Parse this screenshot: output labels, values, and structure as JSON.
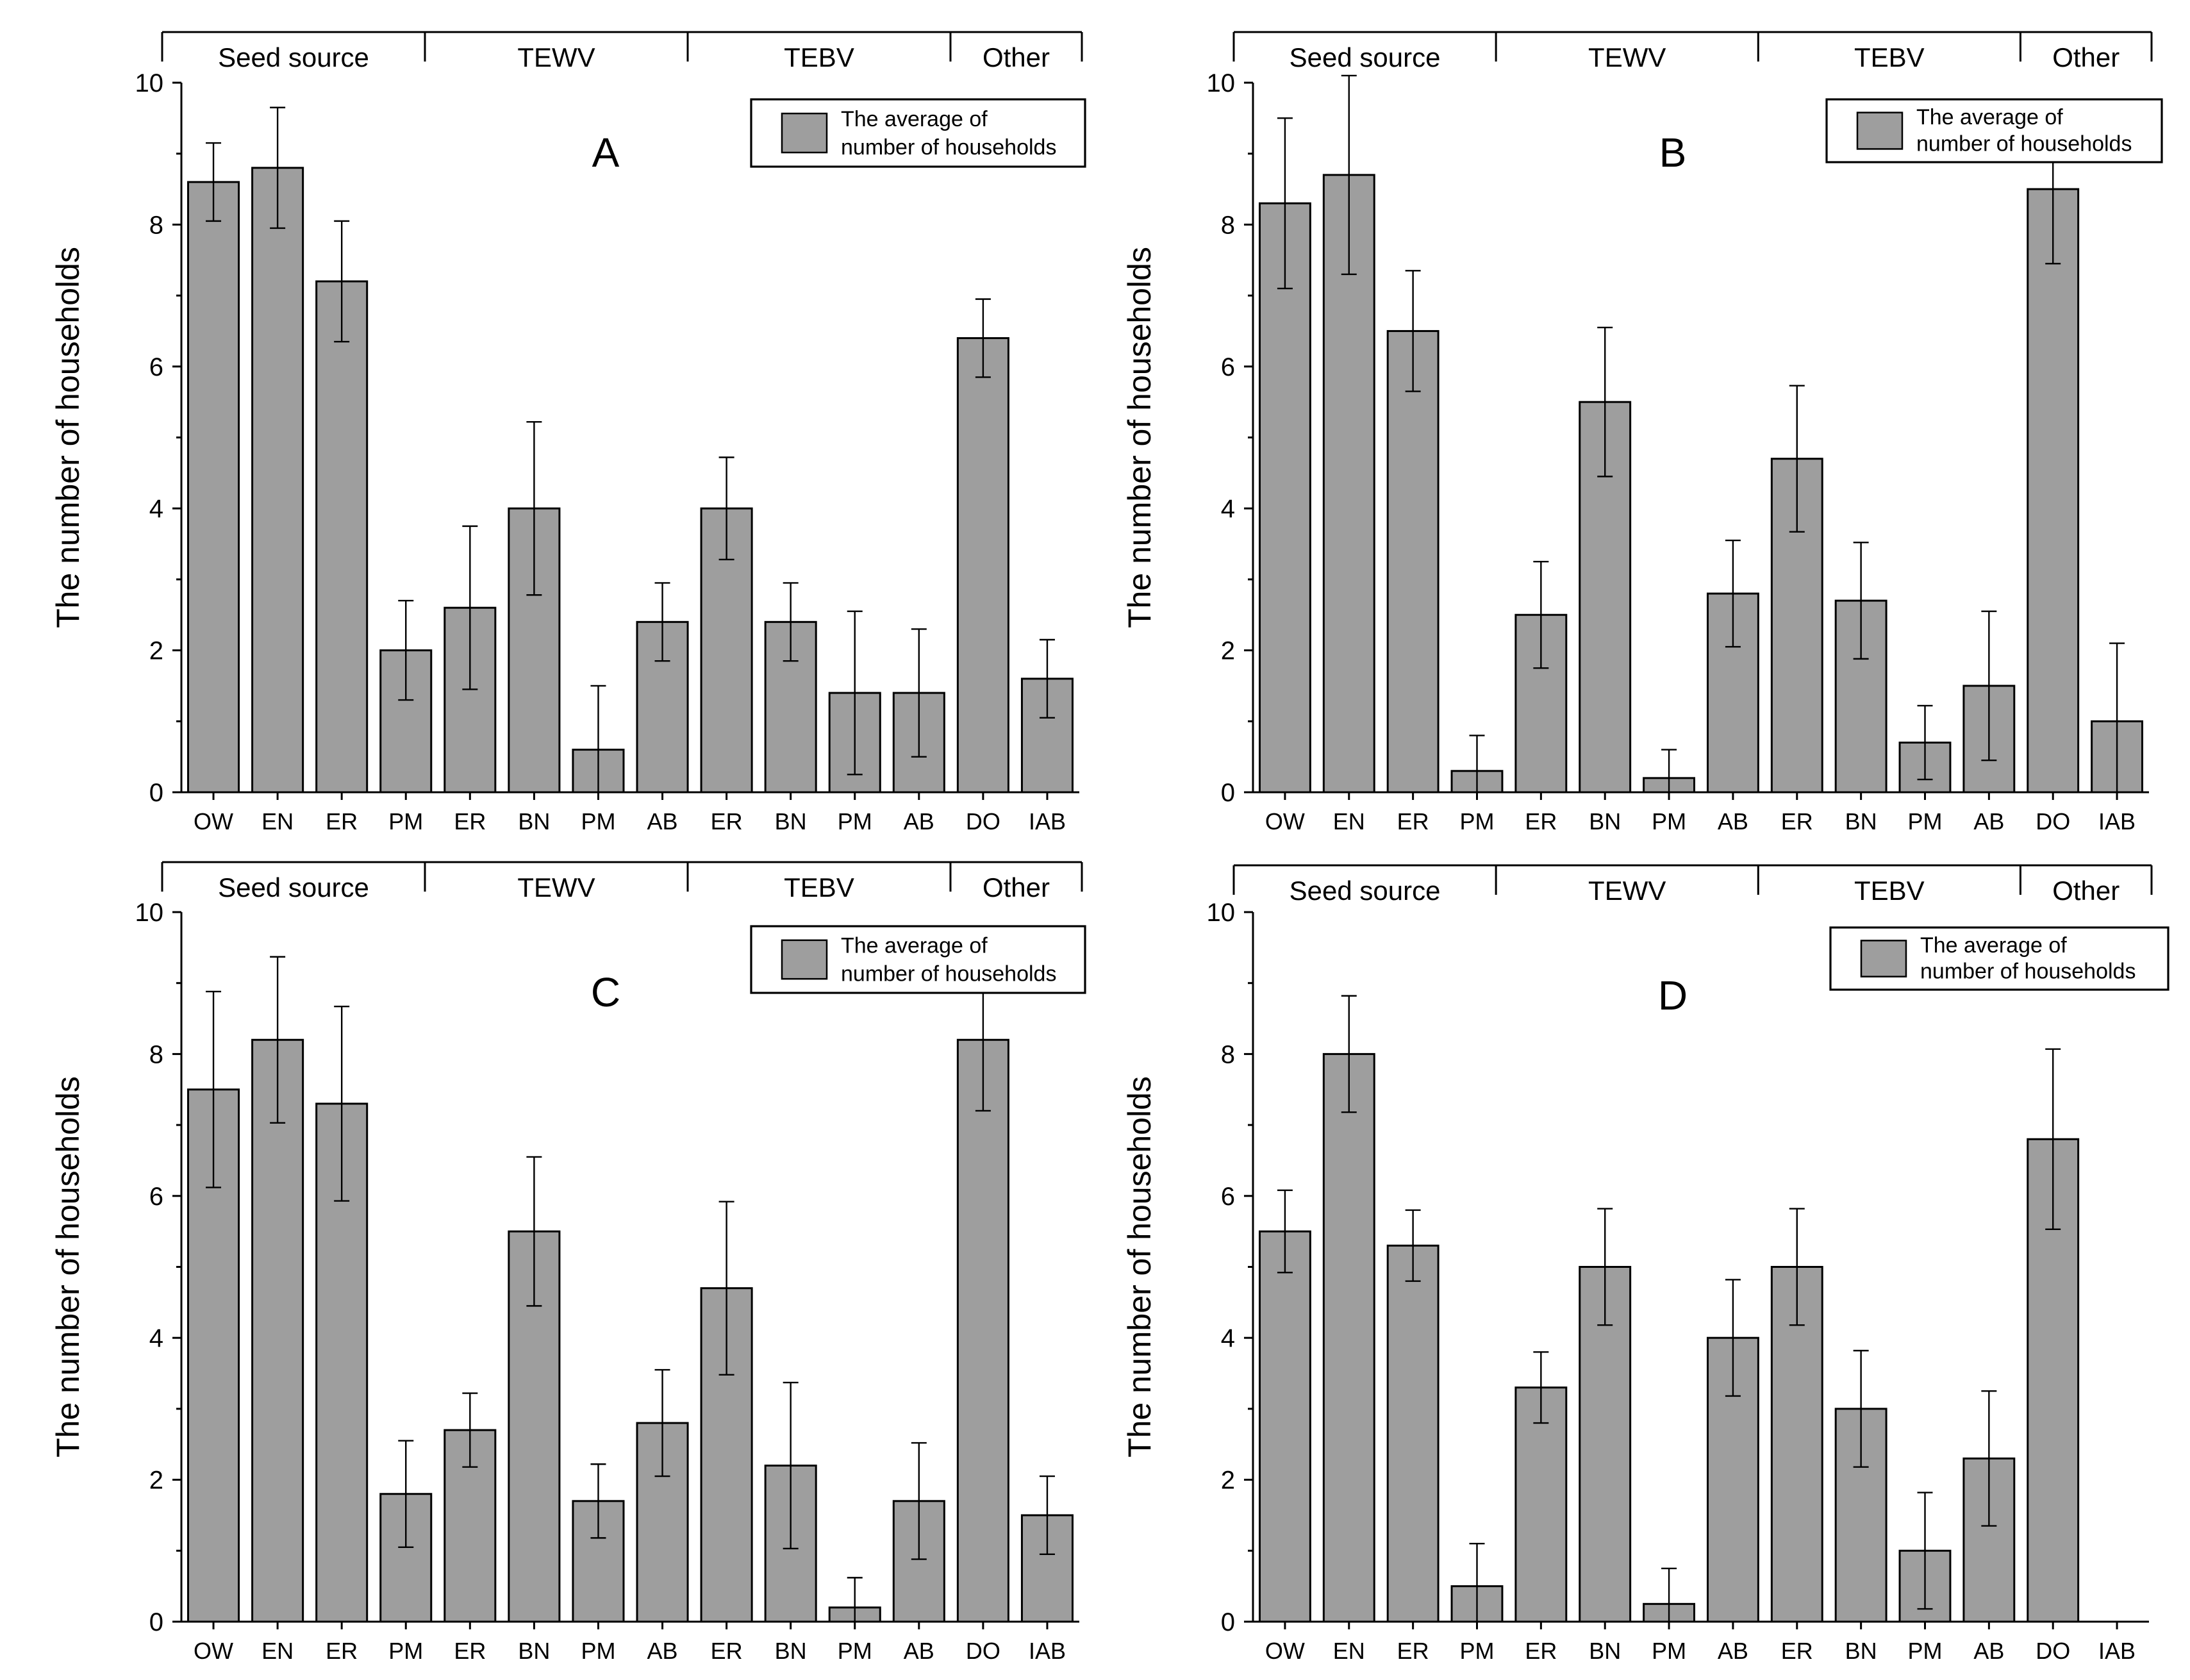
{
  "chart_data": [
    {
      "type": "bar",
      "panel_label": "A",
      "ylabel": "The number of households",
      "ylim": [
        0,
        10
      ],
      "yticks": [
        "0",
        "2",
        "4",
        "6",
        "8",
        "10"
      ],
      "legend": "The average of number of households",
      "legend_lines": [
        "The average of",
        "number of households"
      ],
      "groups": [
        {
          "label": "Seed source",
          "count": 4
        },
        {
          "label": "TEWV",
          "count": 4
        },
        {
          "label": "TEBV",
          "count": 4
        },
        {
          "label": "Other",
          "count": 2
        }
      ],
      "categories": [
        "OW",
        "EN",
        "ER",
        "PM",
        "ER",
        "BN",
        "PM",
        "AB",
        "ER",
        "BN",
        "PM",
        "AB",
        "DO",
        "IAB"
      ],
      "values": [
        8.6,
        8.8,
        7.2,
        2.0,
        2.6,
        4.0,
        0.6,
        2.4,
        4.0,
        2.4,
        1.4,
        1.4,
        6.4,
        1.6
      ],
      "errors": [
        0.55,
        0.85,
        0.85,
        0.7,
        1.15,
        1.22,
        0.9,
        0.55,
        0.72,
        0.55,
        1.15,
        0.9,
        0.55,
        0.55
      ]
    },
    {
      "type": "bar",
      "panel_label": "B",
      "ylabel": "The number of households",
      "ylim": [
        0,
        10
      ],
      "yticks": [
        "0",
        "2",
        "4",
        "6",
        "8",
        "10"
      ],
      "legend": "The average of number of households",
      "legend_lines": [
        "The average of",
        "number of households"
      ],
      "groups": [
        {
          "label": "Seed source",
          "count": 4
        },
        {
          "label": "TEWV",
          "count": 4
        },
        {
          "label": "TEBV",
          "count": 4
        },
        {
          "label": "Other",
          "count": 2
        }
      ],
      "categories": [
        "OW",
        "EN",
        "ER",
        "PM",
        "ER",
        "BN",
        "PM",
        "AB",
        "ER",
        "BN",
        "PM",
        "AB",
        "DO",
        "IAB"
      ],
      "values": [
        8.3,
        8.7,
        6.5,
        0.3,
        2.5,
        5.5,
        0.2,
        2.8,
        4.7,
        2.7,
        0.7,
        1.5,
        8.5,
        1.0
      ],
      "errors": [
        1.2,
        1.4,
        0.85,
        0.5,
        0.75,
        1.05,
        0.4,
        0.75,
        1.03,
        0.82,
        0.52,
        1.05,
        1.05,
        1.1
      ]
    },
    {
      "type": "bar",
      "panel_label": "C",
      "ylabel": "The number of households",
      "ylim": [
        0,
        10
      ],
      "yticks": [
        "0",
        "2",
        "4",
        "6",
        "8",
        "10"
      ],
      "legend": "The average of number of households",
      "legend_lines": [
        "The average of",
        "number of households"
      ],
      "groups": [
        {
          "label": "Seed source",
          "count": 4
        },
        {
          "label": "TEWV",
          "count": 4
        },
        {
          "label": "TEBV",
          "count": 4
        },
        {
          "label": "Other",
          "count": 2
        }
      ],
      "categories": [
        "OW",
        "EN",
        "ER",
        "PM",
        "ER",
        "BN",
        "PM",
        "AB",
        "ER",
        "BN",
        "PM",
        "AB",
        "DO",
        "IAB"
      ],
      "values": [
        7.5,
        8.2,
        7.3,
        1.8,
        2.7,
        5.5,
        1.7,
        2.8,
        4.7,
        2.2,
        0.2,
        1.7,
        8.2,
        1.5
      ],
      "errors": [
        1.38,
        1.17,
        1.37,
        0.75,
        0.52,
        1.05,
        0.52,
        0.75,
        1.22,
        1.17,
        0.42,
        0.82,
        1.0,
        0.55
      ]
    },
    {
      "type": "bar",
      "panel_label": "D",
      "ylabel": "The number of households",
      "ylim": [
        0,
        10
      ],
      "yticks": [
        "0",
        "2",
        "4",
        "6",
        "8",
        "10"
      ],
      "legend": "The average of number of households",
      "legend_lines": [
        "The average of",
        "number of households"
      ],
      "groups": [
        {
          "label": "Seed source",
          "count": 4
        },
        {
          "label": "TEWV",
          "count": 4
        },
        {
          "label": "TEBV",
          "count": 4
        },
        {
          "label": "Other",
          "count": 2
        }
      ],
      "categories": [
        "OW",
        "EN",
        "ER",
        "PM",
        "ER",
        "BN",
        "PM",
        "AB",
        "ER",
        "BN",
        "PM",
        "AB",
        "DO",
        "IAB"
      ],
      "values": [
        5.5,
        8.0,
        5.3,
        0.5,
        3.3,
        5.0,
        0.25,
        4.0,
        5.0,
        3.0,
        1.0,
        2.3,
        6.8,
        0.0
      ],
      "errors": [
        0.58,
        0.82,
        0.5,
        0.6,
        0.5,
        0.82,
        0.5,
        0.82,
        0.82,
        0.82,
        0.82,
        0.95,
        1.27,
        0.0
      ]
    }
  ]
}
